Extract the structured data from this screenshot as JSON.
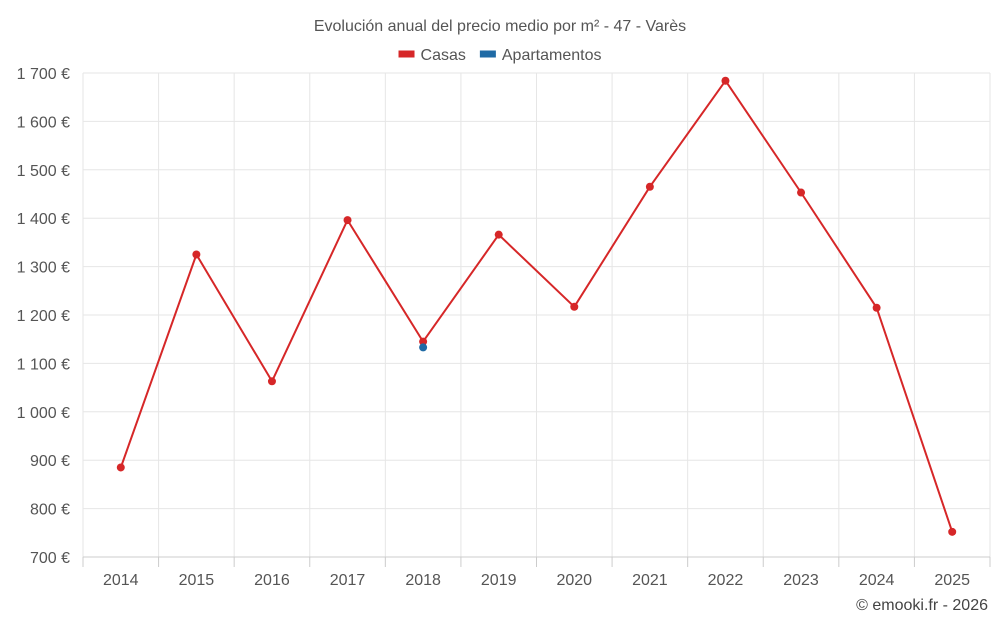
{
  "chart_data": {
    "type": "line",
    "title": "Evolución anual del precio medio por m² - 47 - Varès",
    "categories": [
      "2014",
      "2015",
      "2016",
      "2017",
      "2018",
      "2019",
      "2020",
      "2021",
      "2022",
      "2023",
      "2024",
      "2025"
    ],
    "ylim": [
      700,
      1700
    ],
    "yticks": [
      700,
      800,
      900,
      1000,
      1100,
      1200,
      1300,
      1400,
      1500,
      1600,
      1700
    ],
    "ytick_labels": [
      "700 €",
      "800 €",
      "900 €",
      "1 000 €",
      "1 100 €",
      "1 200 €",
      "1 300 €",
      "1 400 €",
      "1 500 €",
      "1 600 €",
      "1 700 €"
    ],
    "grid": true,
    "legend_position": "top-center",
    "series": [
      {
        "name": "Casas",
        "color": "#d62728",
        "values": [
          885,
          1325,
          1063,
          1396,
          1145,
          1366,
          1217,
          1465,
          1684,
          1453,
          1215,
          752
        ]
      },
      {
        "name": "Apartamentos",
        "color": "#1f6aa5",
        "values": [
          null,
          null,
          null,
          null,
          1133,
          null,
          null,
          null,
          null,
          null,
          null,
          null
        ]
      }
    ]
  },
  "credit": "© emooki.fr - 2026"
}
